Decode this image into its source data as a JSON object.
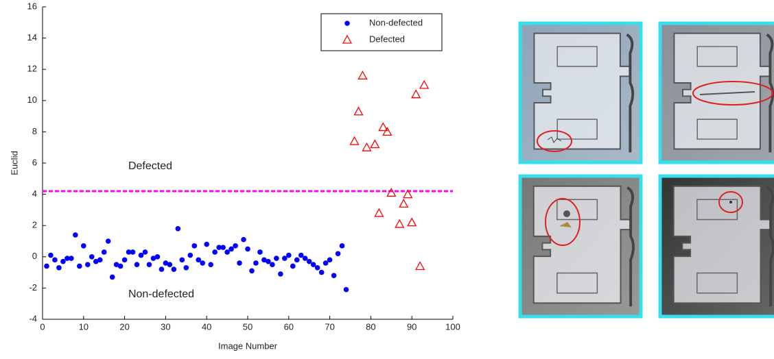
{
  "chart_data": {
    "type": "scatter",
    "xlabel": "Image Number",
    "ylabel": "Euclid",
    "annotations": [
      "Defected",
      "Non-defected"
    ],
    "xlim": [
      0,
      100
    ],
    "xticks": [
      0,
      10,
      20,
      30,
      40,
      50,
      60,
      70,
      80,
      90,
      100
    ],
    "ylim": [
      -4,
      16
    ],
    "yticks": [
      -4,
      -2,
      0,
      2,
      4,
      6,
      8,
      10,
      12,
      14,
      16
    ],
    "threshold": 4.2,
    "threshold_color": "#ff00ff",
    "legend": "upper right",
    "series": [
      {
        "name": "Non-defected",
        "color": "#0000ff",
        "marker": "circle",
        "x": [
          1,
          2,
          3,
          4,
          5,
          6,
          7,
          8,
          9,
          10,
          11,
          12,
          13,
          14,
          15,
          16,
          17,
          18,
          19,
          20,
          21,
          22,
          23,
          24,
          25,
          26,
          27,
          28,
          29,
          30,
          31,
          32,
          33,
          34,
          35,
          36,
          37,
          38,
          39,
          40,
          41,
          42,
          43,
          44,
          45,
          46,
          47,
          48,
          49,
          50,
          51,
          52,
          53,
          54,
          55,
          56,
          57,
          58,
          59,
          60,
          61,
          62,
          63,
          64,
          65,
          66,
          67,
          68,
          69,
          70,
          71,
          72,
          73,
          74
        ],
        "values": [
          -0.6,
          0.1,
          -0.2,
          -0.7,
          -0.3,
          -0.1,
          -0.1,
          1.4,
          -0.6,
          0.7,
          -0.5,
          0.0,
          -0.3,
          -0.2,
          0.3,
          1.0,
          -1.3,
          -0.5,
          -0.6,
          -0.2,
          0.3,
          0.3,
          -0.5,
          0.1,
          0.3,
          -0.5,
          -0.1,
          0.0,
          -0.8,
          -0.4,
          -0.5,
          -0.8,
          1.8,
          -0.2,
          -0.7,
          0.1,
          0.7,
          -0.2,
          -0.4,
          0.8,
          -0.5,
          0.3,
          0.6,
          0.6,
          0.3,
          0.5,
          0.7,
          -0.4,
          1.1,
          0.5,
          -0.9,
          -0.4,
          0.3,
          -0.2,
          -0.3,
          -0.5,
          -0.1,
          -1.1,
          -0.1,
          0.1,
          -0.6,
          -0.2,
          0.1,
          -0.1,
          -0.3,
          -0.5,
          -0.7,
          -1.0,
          -0.4,
          -0.2,
          -1.2,
          0.2,
          0.7,
          -2.1
        ]
      },
      {
        "name": "Defected",
        "color": "#ff0000",
        "marker": "triangle",
        "x": [
          76,
          77,
          78,
          79,
          81,
          82,
          83,
          84,
          85,
          87,
          88,
          89,
          90,
          91,
          92,
          93
        ],
        "values": [
          7.4,
          9.3,
          11.6,
          7.0,
          7.2,
          2.8,
          8.3,
          8.0,
          4.1,
          2.1,
          3.4,
          4.0,
          2.2,
          10.4,
          -0.6,
          11.0
        ]
      }
    ]
  }
}
